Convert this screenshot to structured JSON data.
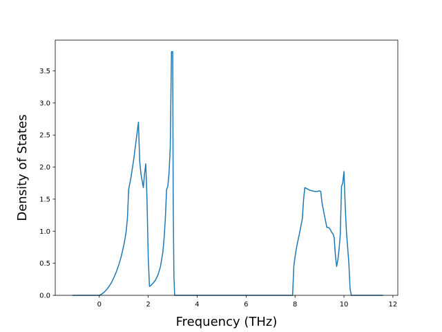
{
  "chart_data": {
    "type": "line",
    "title": "",
    "xlabel": "Frequency (THz)",
    "ylabel": "Density of States",
    "xlim": [
      -1.8,
      12.2
    ],
    "ylim": [
      0.0,
      3.98
    ],
    "xticks": [
      0,
      2,
      4,
      6,
      8,
      10,
      12
    ],
    "xtick_labels": [
      "0",
      "2",
      "4",
      "6",
      "8",
      "10",
      "12"
    ],
    "yticks": [
      0.0,
      0.5,
      1.0,
      1.5,
      2.0,
      2.5,
      3.0,
      3.5
    ],
    "ytick_labels": [
      "0.0",
      "0.5",
      "1.0",
      "1.5",
      "2.0",
      "2.5",
      "3.0",
      "3.5"
    ],
    "grid": false,
    "legend": "none",
    "series_color": "#1f77b4",
    "series": [
      {
        "x": [
          -1.1,
          -0.5,
          0.0,
          0.1,
          0.2,
          0.3,
          0.4,
          0.5,
          0.6,
          0.7,
          0.8,
          0.9,
          1.0,
          1.05,
          1.1,
          1.15,
          1.2,
          1.3,
          1.4,
          1.5,
          1.6,
          1.65,
          1.7,
          1.8,
          1.85,
          1.9,
          1.95,
          2.0,
          2.05,
          2.1,
          2.2,
          2.3,
          2.4,
          2.5,
          2.6,
          2.65,
          2.7,
          2.75,
          2.8,
          2.85,
          2.9,
          2.95,
          3.0,
          3.02,
          3.05,
          3.08,
          3.1,
          3.12,
          4.0,
          6.0,
          7.9,
          7.95,
          8.0,
          8.05,
          8.1,
          8.2,
          8.3,
          8.35,
          8.4,
          8.45,
          8.5,
          8.6,
          8.7,
          8.8,
          8.9,
          9.0,
          9.05,
          9.1,
          9.2,
          9.3,
          9.35,
          9.4,
          9.45,
          9.5,
          9.55,
          9.6,
          9.65,
          9.7,
          9.75,
          9.8,
          9.85,
          9.9,
          9.95,
          10.0,
          10.05,
          10.1,
          10.15,
          10.2,
          10.25,
          10.3,
          10.35,
          10.4,
          10.45,
          10.5,
          10.55,
          10.6,
          11.0,
          11.6
        ],
        "y": [
          0.0,
          0.0,
          0.0,
          0.02,
          0.05,
          0.09,
          0.14,
          0.2,
          0.28,
          0.37,
          0.48,
          0.61,
          0.78,
          0.88,
          1.0,
          1.2,
          1.65,
          1.85,
          2.1,
          2.4,
          2.7,
          2.1,
          1.9,
          1.68,
          1.9,
          2.05,
          1.5,
          0.6,
          0.14,
          0.15,
          0.19,
          0.24,
          0.32,
          0.45,
          0.68,
          0.9,
          1.2,
          1.65,
          1.7,
          1.9,
          2.3,
          3.8,
          3.8,
          1.5,
          0.3,
          0.0,
          0.0,
          0.0,
          0.0,
          0.0,
          0.0,
          0.45,
          0.6,
          0.72,
          0.82,
          1.0,
          1.2,
          1.5,
          1.68,
          1.67,
          1.66,
          1.64,
          1.63,
          1.62,
          1.62,
          1.63,
          1.62,
          1.45,
          1.25,
          1.06,
          1.06,
          1.05,
          1.02,
          0.98,
          0.96,
          0.9,
          0.62,
          0.45,
          0.55,
          0.72,
          0.95,
          1.7,
          1.75,
          1.93,
          1.4,
          1.0,
          0.75,
          0.5,
          0.1,
          0.0,
          0.0,
          0.0,
          0.0,
          0.0,
          0.0,
          0.0,
          0.0,
          0.0
        ]
      }
    ]
  }
}
